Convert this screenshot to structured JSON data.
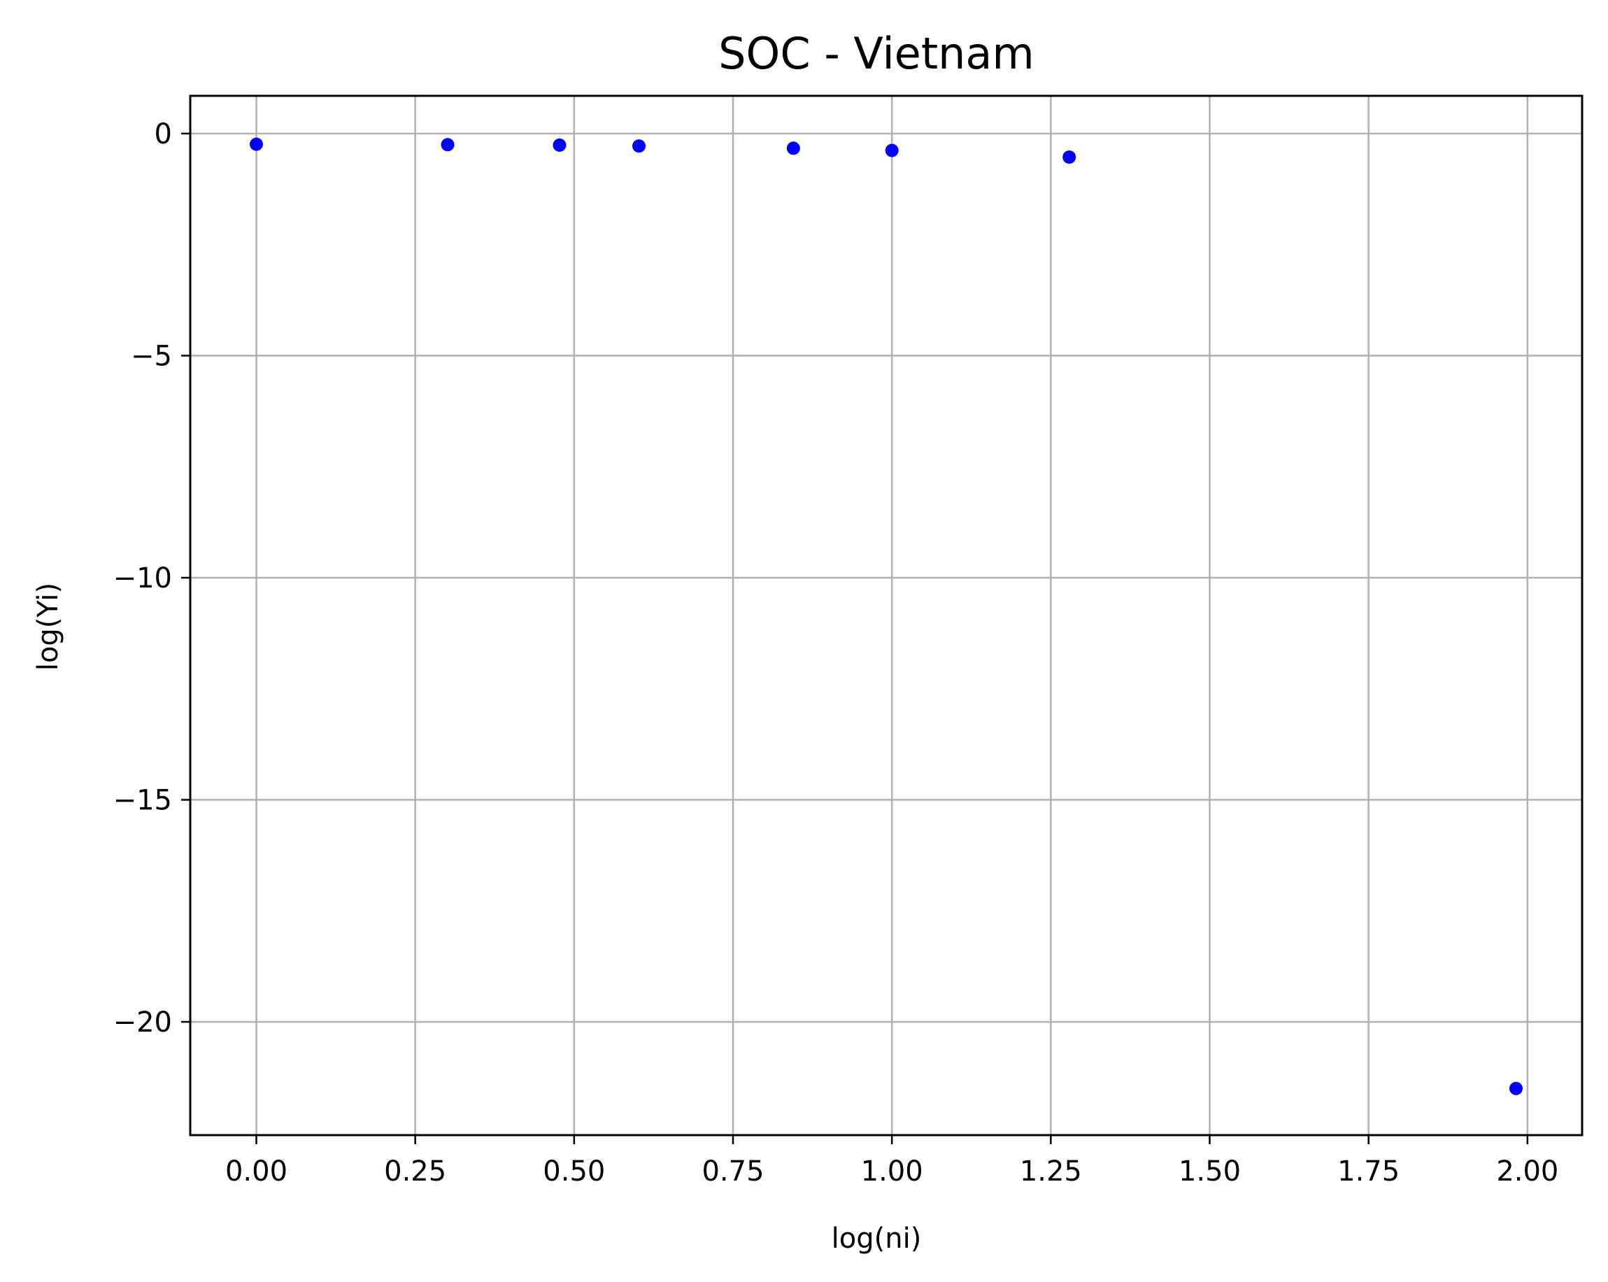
{
  "chart_data": {
    "type": "scatter",
    "title": "SOC - Vietnam",
    "xlabel": "log(ni)",
    "ylabel": "log(Yi)",
    "xlim": [
      -0.104,
      2.086
    ],
    "ylim": [
      -22.55,
      0.85
    ],
    "grid": true,
    "x_ticks": [
      0.0,
      0.25,
      0.5,
      0.75,
      1.0,
      1.25,
      1.5,
      1.75,
      2.0
    ],
    "x_tick_labels": [
      "0.00",
      "0.25",
      "0.50",
      "0.75",
      "1.00",
      "1.25",
      "1.50",
      "1.75",
      "2.00"
    ],
    "y_ticks": [
      0,
      -5,
      -10,
      -15,
      -20
    ],
    "y_tick_labels": [
      "0",
      "−5",
      "−10",
      "−15",
      "−20"
    ],
    "marker_color": "#0000ff",
    "grid_color": "#b0b0b0",
    "points": [
      {
        "x": 0.0,
        "y": -0.24
      },
      {
        "x": 0.301,
        "y": -0.25
      },
      {
        "x": 0.477,
        "y": -0.26
      },
      {
        "x": 0.602,
        "y": -0.28
      },
      {
        "x": 0.845,
        "y": -0.33
      },
      {
        "x": 1.0,
        "y": -0.38
      },
      {
        "x": 1.279,
        "y": -0.53
      },
      {
        "x": 1.982,
        "y": -21.5
      }
    ]
  }
}
